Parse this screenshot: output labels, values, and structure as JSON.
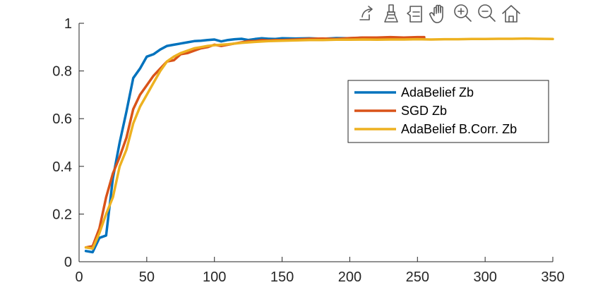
{
  "toolbar": {
    "icons": [
      "export-icon",
      "brush-icon",
      "datatip-icon",
      "pan-hand-icon",
      "zoom-in-icon",
      "zoom-out-icon",
      "home-icon"
    ]
  },
  "chart_data": {
    "type": "line",
    "title": "",
    "xlabel": "",
    "ylabel": "",
    "xlim": [
      0,
      350
    ],
    "ylim": [
      0,
      1
    ],
    "xticks": [
      0,
      50,
      100,
      150,
      200,
      250,
      300,
      350
    ],
    "yticks": [
      0,
      0.2,
      0.4,
      0.6,
      0.8,
      1
    ],
    "xtick_labels": [
      "0",
      "50",
      "100",
      "150",
      "200",
      "250",
      "300",
      "350"
    ],
    "ytick_labels": [
      "0",
      "0.2",
      "0.4",
      "0.6",
      "0.8",
      "1"
    ],
    "grid": false,
    "legend_position": "right, inside axes",
    "series": [
      {
        "name": "AdaBelief Zb",
        "color": "#0072BD",
        "x": [
          5,
          10,
          15,
          20,
          25,
          30,
          35,
          40,
          45,
          50,
          55,
          60,
          65,
          70,
          75,
          80,
          85,
          90,
          95,
          100,
          105,
          110,
          115,
          120,
          125,
          130,
          135,
          140,
          145,
          150,
          160,
          170,
          180,
          190,
          200,
          210,
          220,
          230,
          240,
          250,
          255
        ],
        "y": [
          0.045,
          0.04,
          0.1,
          0.11,
          0.35,
          0.5,
          0.63,
          0.77,
          0.81,
          0.86,
          0.87,
          0.89,
          0.905,
          0.91,
          0.915,
          0.92,
          0.925,
          0.927,
          0.93,
          0.932,
          0.924,
          0.93,
          0.933,
          0.935,
          0.93,
          0.934,
          0.937,
          0.935,
          0.934,
          0.937,
          0.936,
          0.937,
          0.935,
          0.938,
          0.937,
          0.94,
          0.938,
          0.94,
          0.939,
          0.94,
          0.94
        ]
      },
      {
        "name": "SGD Zb",
        "color": "#D95319",
        "x": [
          5,
          10,
          15,
          20,
          25,
          30,
          35,
          40,
          45,
          50,
          55,
          60,
          65,
          70,
          75,
          80,
          85,
          90,
          95,
          100,
          105,
          110,
          115,
          120,
          125,
          130,
          135,
          140,
          145,
          150,
          160,
          170,
          180,
          190,
          200,
          210,
          220,
          230,
          240,
          250,
          255
        ],
        "y": [
          0.06,
          0.065,
          0.14,
          0.27,
          0.37,
          0.44,
          0.52,
          0.64,
          0.7,
          0.74,
          0.78,
          0.81,
          0.84,
          0.845,
          0.87,
          0.875,
          0.885,
          0.895,
          0.9,
          0.91,
          0.905,
          0.91,
          0.915,
          0.92,
          0.925,
          0.925,
          0.93,
          0.928,
          0.93,
          0.93,
          0.932,
          0.935,
          0.936,
          0.934,
          0.938,
          0.94,
          0.94,
          0.942,
          0.94,
          0.942,
          0.942
        ]
      },
      {
        "name": "AdaBelief B.Corr. Zb",
        "color": "#EDB120",
        "x": [
          5,
          10,
          15,
          20,
          25,
          30,
          35,
          40,
          45,
          50,
          55,
          60,
          65,
          70,
          75,
          80,
          85,
          90,
          95,
          100,
          105,
          110,
          115,
          120,
          130,
          140,
          150,
          160,
          170,
          180,
          190,
          200,
          210,
          220,
          230,
          240,
          250,
          260,
          270,
          280,
          290,
          300,
          310,
          320,
          330,
          340,
          350
        ],
        "y": [
          0.06,
          0.055,
          0.12,
          0.2,
          0.27,
          0.4,
          0.47,
          0.58,
          0.65,
          0.7,
          0.75,
          0.8,
          0.84,
          0.86,
          0.875,
          0.885,
          0.895,
          0.9,
          0.905,
          0.908,
          0.91,
          0.912,
          0.915,
          0.918,
          0.922,
          0.925,
          0.927,
          0.928,
          0.93,
          0.93,
          0.931,
          0.931,
          0.932,
          0.931,
          0.932,
          0.932,
          0.933,
          0.932,
          0.933,
          0.933,
          0.934,
          0.934,
          0.935,
          0.935,
          0.936,
          0.935,
          0.934
        ]
      }
    ]
  }
}
